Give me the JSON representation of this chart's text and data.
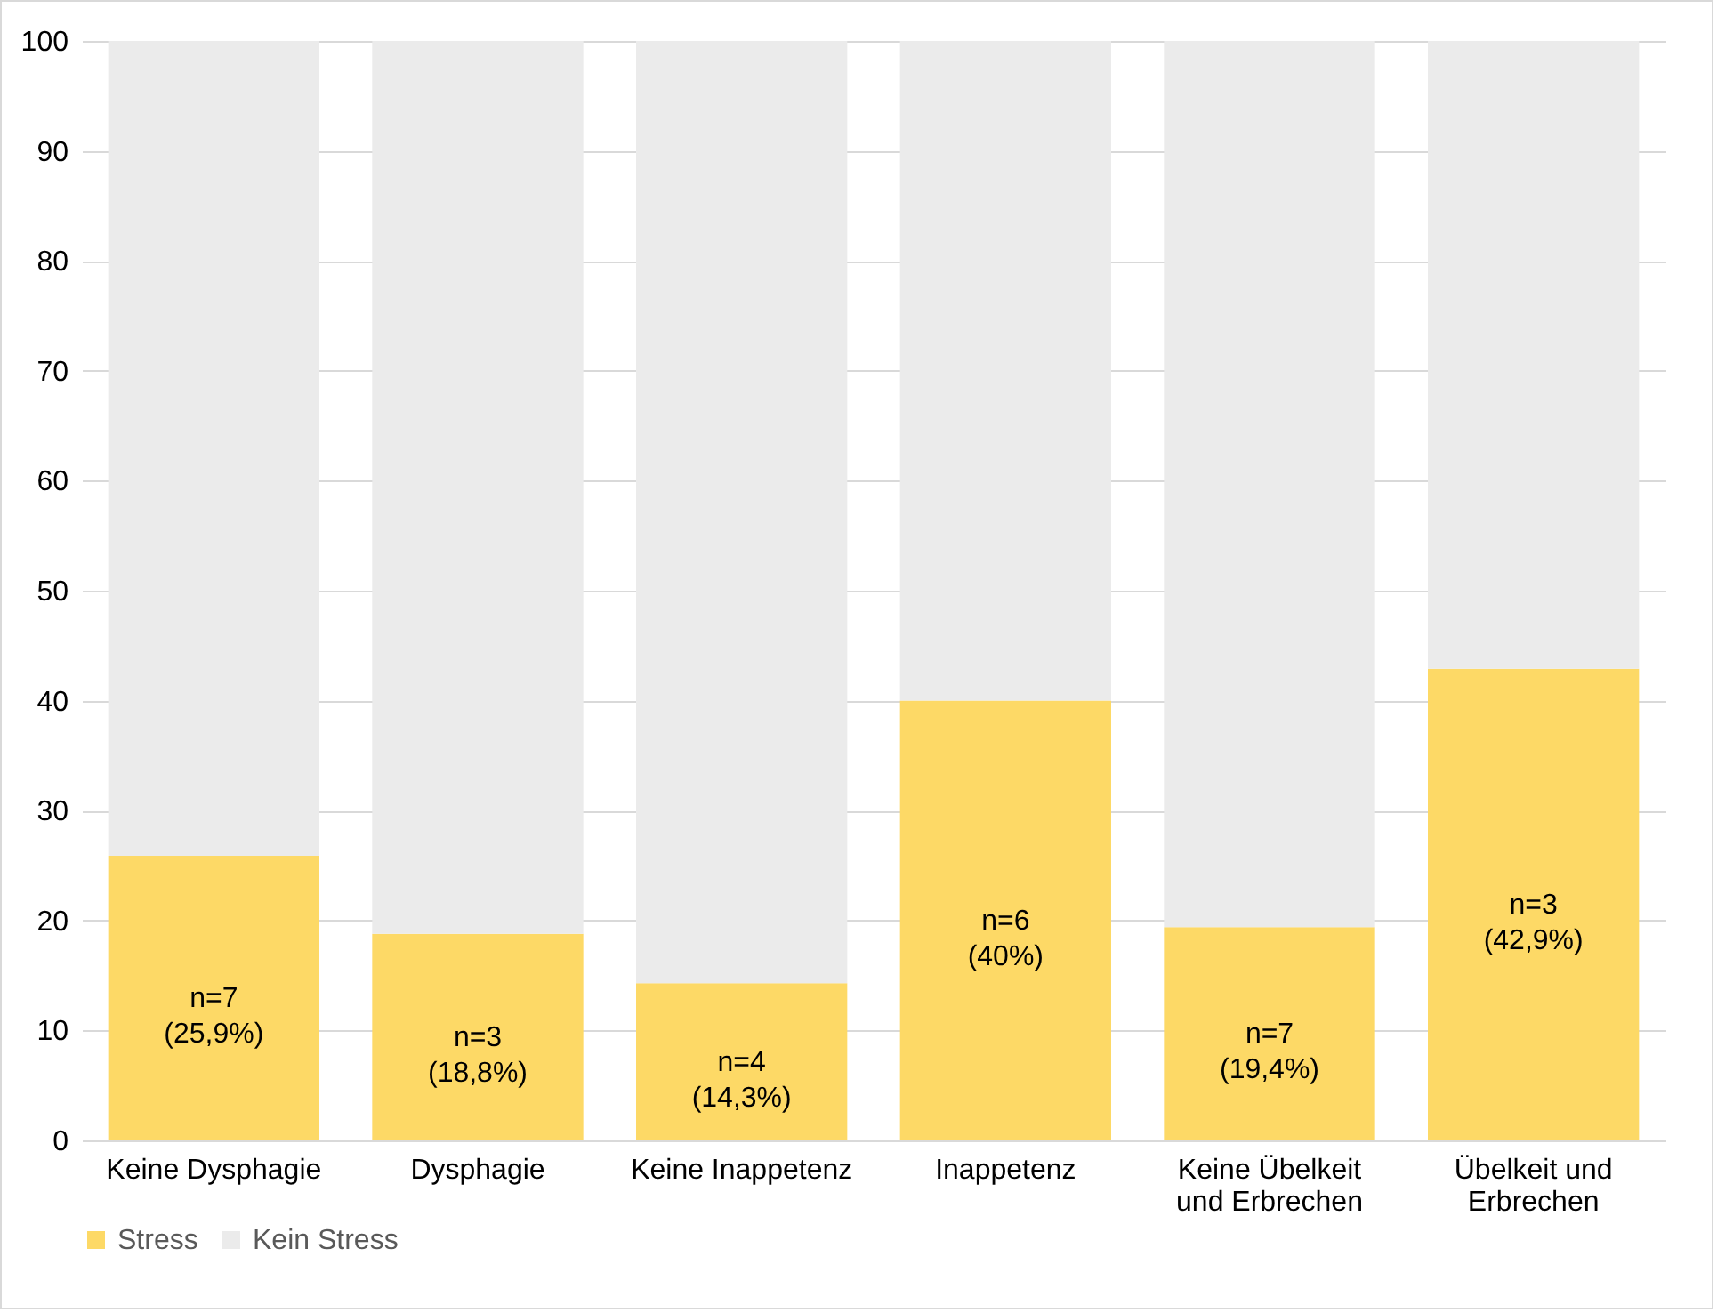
{
  "chart_data": {
    "type": "bar",
    "stacked": true,
    "categories": [
      "Keine Dysphagie",
      "Dysphagie",
      "Keine Inappetenz",
      "Inappetenz",
      "Keine Übelkeit und Erbrechen",
      "Übelkeit und Erbrechen"
    ],
    "series": [
      {
        "name": "Stress",
        "color": "#fdd966",
        "values": [
          25.9,
          18.8,
          14.3,
          40,
          19.4,
          42.9
        ],
        "value_labels": [
          "n=7\n(25,9%)",
          "n=3\n(18,8%)",
          "n=4\n(14,3%)",
          "n=6\n(40%)",
          "n=7\n(19,4%)",
          "n=3\n(42,9%)"
        ]
      },
      {
        "name": "Kein Stress",
        "color": "#ebebeb",
        "values": [
          74.1,
          81.2,
          85.7,
          60,
          80.6,
          57.1
        ]
      }
    ],
    "ylim": [
      0,
      100
    ],
    "yticks": [
      0,
      10,
      20,
      30,
      40,
      50,
      60,
      70,
      80,
      90,
      100
    ],
    "grid": "y",
    "legend": "bottom"
  }
}
